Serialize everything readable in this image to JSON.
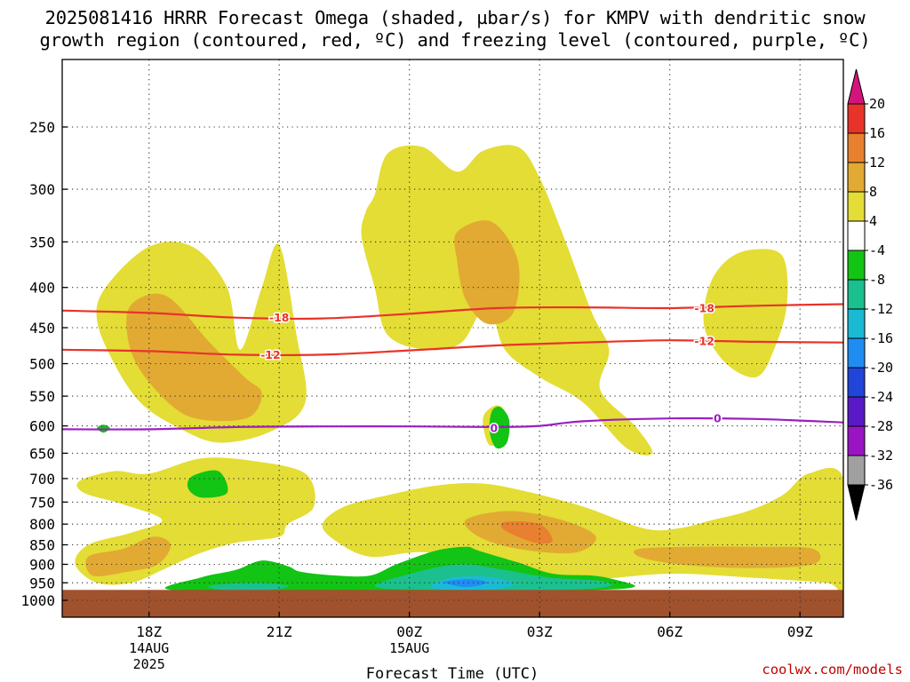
{
  "title": {
    "line1": "2025081416 HRRR Forecast Omega (shaded, µbar/s) for KMPV with dendritic snow",
    "line2": "growth region (contoured, red, ºC) and freezing level (contoured, purple, ºC)"
  },
  "credit": "coolwx.com/models",
  "chart_data": {
    "type": "heatmap",
    "xlabel": "Forecast Time (UTC)",
    "ylabel": "",
    "x_ticks": [
      {
        "label": "18Z",
        "sub": [
          "14AUG",
          "2025"
        ],
        "hour": 18
      },
      {
        "label": "21Z",
        "sub": [],
        "hour": 21
      },
      {
        "label": "00Z",
        "sub": [
          "15AUG"
        ],
        "hour": 24
      },
      {
        "label": "03Z",
        "sub": [],
        "hour": 27
      },
      {
        "label": "06Z",
        "sub": [],
        "hour": 30
      },
      {
        "label": "09Z",
        "sub": [],
        "hour": 33
      }
    ],
    "xlim": [
      16,
      34
    ],
    "y_ticks": [
      250,
      300,
      350,
      400,
      450,
      500,
      550,
      600,
      650,
      700,
      750,
      800,
      850,
      900,
      950,
      1000
    ],
    "ylim_hpa": [
      200,
      1000
    ],
    "y_scale": "log",
    "surface_pressure_hpa": 970,
    "grid": true,
    "colorbar": {
      "labels": [
        "20",
        "16",
        "12",
        "8",
        "4",
        "-4",
        "-8",
        "-12",
        "-16",
        "-20",
        "-24",
        "-28",
        "-32",
        "-36"
      ],
      "colors": [
        "#d4147e",
        "#e8332a",
        "#e9802f",
        "#e2aa32",
        "#e3dd35",
        "#ffffff",
        "#12c413",
        "#1bc08e",
        "#1bbad4",
        "#1f8cf2",
        "#2144d9",
        "#5a19c7",
        "#9b14c4",
        "#a0a0a0",
        "#000000"
      ]
    },
    "contours": [
      {
        "name": "dgz_top",
        "value": -18,
        "label": "-18",
        "color": "#e8332a",
        "points": [
          [
            16.0,
            428
          ],
          [
            18.0,
            431
          ],
          [
            20.0,
            437
          ],
          [
            22.0,
            438
          ],
          [
            24.0,
            432
          ],
          [
            26.0,
            425
          ],
          [
            28.0,
            424
          ],
          [
            30.0,
            425
          ],
          [
            32.0,
            422
          ],
          [
            34.0,
            420
          ]
        ]
      },
      {
        "name": "dgz_bottom",
        "value": -12,
        "label": "-12",
        "color": "#e8332a",
        "points": [
          [
            16.0,
            480
          ],
          [
            18.0,
            482
          ],
          [
            20.0,
            487
          ],
          [
            22.0,
            487
          ],
          [
            24.0,
            481
          ],
          [
            26.0,
            474
          ],
          [
            28.0,
            470
          ],
          [
            30.0,
            467
          ],
          [
            32.0,
            469
          ],
          [
            34.0,
            470
          ]
        ]
      },
      {
        "name": "freezing_level",
        "value": 0,
        "label": "0",
        "color": "#9b1fc1",
        "points": [
          [
            16.0,
            606
          ],
          [
            18.0,
            606
          ],
          [
            20.0,
            602
          ],
          [
            22.0,
            601
          ],
          [
            24.0,
            601
          ],
          [
            26.0,
            602
          ],
          [
            27.0,
            600
          ],
          [
            28.0,
            592
          ],
          [
            30.0,
            587
          ],
          [
            32.0,
            588
          ],
          [
            34.0,
            594
          ]
        ]
      }
    ],
    "contour_labels": [
      {
        "text": "-18",
        "hour": 21.0,
        "p": 437,
        "color": "#e8332a"
      },
      {
        "text": "-12",
        "hour": 20.8,
        "p": 487,
        "color": "#e8332a"
      },
      {
        "text": "-18",
        "hour": 30.8,
        "p": 425,
        "color": "#e8332a"
      },
      {
        "text": "-12",
        "hour": 30.8,
        "p": 468,
        "color": "#e8332a"
      },
      {
        "text": "0",
        "hour": 25.95,
        "p": 604,
        "color": "#9b1fc1"
      },
      {
        "text": "0",
        "hour": 31.1,
        "p": 587,
        "color": "#9b1fc1"
      }
    ],
    "omega_regions": [
      {
        "level": 4,
        "points": [
          [
            17.0,
            400
          ],
          [
            18.0,
            355
          ],
          [
            19.0,
            355
          ],
          [
            19.8,
            400
          ],
          [
            20.1,
            480
          ],
          [
            20.6,
            400
          ],
          [
            21.0,
            353
          ],
          [
            21.4,
            460
          ],
          [
            21.6,
            560
          ],
          [
            20.8,
            610
          ],
          [
            19.6,
            630
          ],
          [
            18.6,
            600
          ],
          [
            17.8,
            560
          ],
          [
            17.2,
            500
          ],
          [
            16.8,
            440
          ]
        ]
      },
      {
        "level": 8,
        "points": [
          [
            17.6,
            420
          ],
          [
            18.4,
            410
          ],
          [
            19.4,
            470
          ],
          [
            20.2,
            520
          ],
          [
            20.6,
            545
          ],
          [
            20.3,
            585
          ],
          [
            19.3,
            590
          ],
          [
            18.6,
            570
          ],
          [
            17.8,
            510
          ],
          [
            17.5,
            460
          ]
        ]
      },
      {
        "level": 4,
        "points": [
          [
            23.2,
            305
          ],
          [
            23.5,
            270
          ],
          [
            24.3,
            265
          ],
          [
            25.1,
            285
          ],
          [
            25.7,
            268
          ],
          [
            26.5,
            265
          ],
          [
            27.0,
            290
          ],
          [
            27.6,
            350
          ],
          [
            28.2,
            430
          ],
          [
            28.6,
            480
          ],
          [
            28.4,
            540
          ],
          [
            29.2,
            600
          ],
          [
            29.6,
            650
          ],
          [
            29.0,
            640
          ],
          [
            28.0,
            560
          ],
          [
            27.0,
            520
          ],
          [
            26.2,
            480
          ],
          [
            25.8,
            420
          ],
          [
            25.2,
            470
          ],
          [
            24.4,
            480
          ],
          [
            23.5,
            460
          ],
          [
            23.2,
            400
          ],
          [
            22.9,
            345
          ],
          [
            23.0,
            320
          ]
        ]
      },
      {
        "level": 8,
        "points": [
          [
            25.1,
            340
          ],
          [
            25.9,
            330
          ],
          [
            26.5,
            370
          ],
          [
            26.4,
            430
          ],
          [
            25.8,
            445
          ],
          [
            25.3,
            415
          ],
          [
            25.1,
            370
          ]
        ]
      },
      {
        "level": 4,
        "points": [
          [
            26.0,
            565
          ],
          [
            26.2,
            580
          ],
          [
            26.0,
            630
          ],
          [
            25.8,
            630
          ],
          [
            25.7,
            585
          ]
        ]
      },
      {
        "level": 4,
        "points": [
          [
            31.3,
            370
          ],
          [
            31.9,
            358
          ],
          [
            32.6,
            365
          ],
          [
            32.7,
            420
          ],
          [
            32.4,
            480
          ],
          [
            32.0,
            520
          ],
          [
            31.3,
            500
          ],
          [
            30.8,
            450
          ],
          [
            30.9,
            400
          ]
        ]
      },
      {
        "level": 4,
        "points": [
          [
            16.4,
            705
          ],
          [
            17.2,
            685
          ],
          [
            18.0,
            690
          ],
          [
            19.2,
            660
          ],
          [
            20.4,
            665
          ],
          [
            21.6,
            690
          ],
          [
            21.8,
            760
          ],
          [
            21.2,
            800
          ],
          [
            21.0,
            830
          ],
          [
            20.0,
            845
          ],
          [
            19.2,
            870
          ],
          [
            18.4,
            910
          ],
          [
            17.6,
            950
          ],
          [
            16.8,
            950
          ],
          [
            16.3,
            900
          ],
          [
            16.6,
            850
          ],
          [
            17.6,
            820
          ],
          [
            18.3,
            790
          ],
          [
            17.4,
            755
          ],
          [
            16.5,
            730
          ]
        ]
      },
      {
        "level": 8,
        "points": [
          [
            16.6,
            880
          ],
          [
            17.4,
            860
          ],
          [
            18.1,
            830
          ],
          [
            18.5,
            850
          ],
          [
            18.2,
            900
          ],
          [
            17.5,
            920
          ],
          [
            16.7,
            930
          ]
        ]
      },
      {
        "level": 4,
        "points": [
          [
            16.9,
            700
          ],
          [
            17.1,
            705
          ],
          [
            17.0,
            735
          ],
          [
            16.9,
            735
          ]
        ]
      },
      {
        "level": 4,
        "points": [
          [
            22.5,
            760
          ],
          [
            23.5,
            735
          ],
          [
            24.6,
            715
          ],
          [
            25.6,
            710
          ],
          [
            26.6,
            725
          ],
          [
            28.0,
            760
          ],
          [
            29.4,
            810
          ],
          [
            30.2,
            810
          ],
          [
            31.0,
            790
          ],
          [
            31.8,
            770
          ],
          [
            32.6,
            735
          ],
          [
            33.2,
            690
          ],
          [
            34.0,
            700
          ],
          [
            34.0,
            960
          ],
          [
            33.6,
            950
          ],
          [
            31.8,
            935
          ],
          [
            30.0,
            925
          ],
          [
            28.2,
            940
          ],
          [
            26.6,
            930
          ],
          [
            24.5,
            870
          ],
          [
            23.1,
            880
          ],
          [
            22.3,
            840
          ],
          [
            22.0,
            800
          ]
        ]
      },
      {
        "level": 8,
        "points": [
          [
            25.3,
            790
          ],
          [
            26.3,
            770
          ],
          [
            27.5,
            790
          ],
          [
            28.3,
            830
          ],
          [
            27.8,
            870
          ],
          [
            26.5,
            860
          ],
          [
            25.6,
            830
          ]
        ]
      },
      {
        "level": 12,
        "points": [
          [
            26.2,
            795
          ],
          [
            27.0,
            800
          ],
          [
            27.3,
            840
          ],
          [
            26.9,
            845
          ],
          [
            26.2,
            815
          ]
        ]
      },
      {
        "level": 8,
        "points": [
          [
            29.3,
            860
          ],
          [
            30.5,
            855
          ],
          [
            32.0,
            855
          ],
          [
            33.3,
            860
          ],
          [
            33.3,
            900
          ],
          [
            31.8,
            910
          ],
          [
            30.2,
            900
          ],
          [
            29.3,
            880
          ]
        ]
      },
      {
        "level": -4,
        "points": [
          [
            18.5,
            970
          ],
          [
            19.2,
            935
          ],
          [
            20.0,
            915
          ],
          [
            20.6,
            890
          ],
          [
            21.2,
            905
          ],
          [
            21.5,
            920
          ],
          [
            22.3,
            930
          ],
          [
            23.1,
            930
          ],
          [
            23.7,
            900
          ],
          [
            24.6,
            865
          ],
          [
            25.3,
            855
          ],
          [
            25.6,
            865
          ],
          [
            26.5,
            895
          ],
          [
            27.3,
            925
          ],
          [
            28.2,
            930
          ],
          [
            28.7,
            940
          ],
          [
            29.2,
            960
          ],
          [
            28.4,
            970
          ],
          [
            25.5,
            975
          ],
          [
            22.0,
            975
          ]
        ]
      },
      {
        "level": -8,
        "points": [
          [
            19.4,
            958
          ],
          [
            20.4,
            950
          ],
          [
            21.2,
            958
          ],
          [
            20.8,
            970
          ],
          [
            19.7,
            970
          ]
        ]
      },
      {
        "level": -8,
        "points": [
          [
            23.2,
            960
          ],
          [
            24.2,
            920
          ],
          [
            25.2,
            900
          ],
          [
            26.2,
            915
          ],
          [
            27.2,
            935
          ],
          [
            28.4,
            945
          ],
          [
            28.6,
            960
          ],
          [
            27.5,
            970
          ],
          [
            24.5,
            970
          ]
        ]
      },
      {
        "level": -12,
        "points": [
          [
            24.5,
            960
          ],
          [
            25.0,
            935
          ],
          [
            25.9,
            935
          ],
          [
            26.4,
            955
          ],
          [
            25.8,
            970
          ],
          [
            24.9,
            970
          ]
        ]
      },
      {
        "level": -16,
        "points": [
          [
            24.8,
            948
          ],
          [
            25.4,
            940
          ],
          [
            25.8,
            950
          ],
          [
            25.3,
            962
          ]
        ]
      },
      {
        "level": -4,
        "points": [
          [
            19.0,
            695
          ],
          [
            19.6,
            685
          ],
          [
            19.8,
            730
          ],
          [
            19.2,
            740
          ],
          [
            18.9,
            720
          ]
        ]
      },
      {
        "level": -4,
        "points": [
          [
            16.8,
            604
          ],
          [
            16.95,
            598
          ],
          [
            17.1,
            604
          ],
          [
            16.95,
            612
          ]
        ]
      },
      {
        "level": -4,
        "points": [
          [
            25.9,
            575
          ],
          [
            26.1,
            568
          ],
          [
            26.3,
            590
          ],
          [
            26.25,
            630
          ],
          [
            26.0,
            640
          ],
          [
            25.85,
            610
          ]
        ]
      }
    ]
  }
}
